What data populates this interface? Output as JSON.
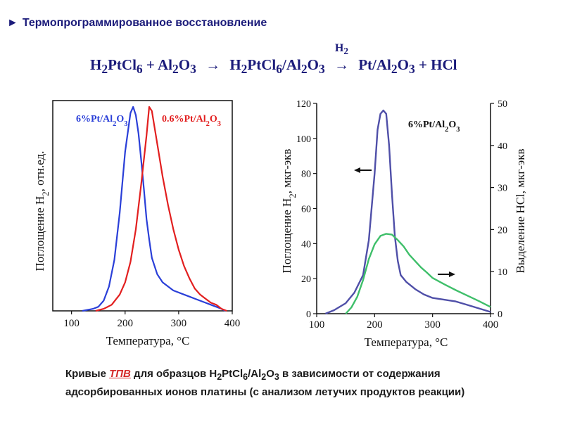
{
  "header": {
    "title": "Термопрограммированное восстановление",
    "bullet_icon": "triangle-right-icon"
  },
  "equation": {
    "reactant1": "H2PtCl6",
    "plus1": "+",
    "reactant2": "Al2O3",
    "intermediate": "H2PtCl6/Al2O3",
    "arrow_label": "H2",
    "product1": "Pt/Al2O3",
    "plus2": "+",
    "product2": "HCl"
  },
  "caption": {
    "part1": "Кривые ",
    "highlight": "ТПВ",
    "part2": "  для образцов  H2PtCl6/Al2O3  в  зависимости  от  содержания",
    "line2": "адсорбированных ионов платины (с анализом летучих продуктов реакции)"
  },
  "chart_data": [
    {
      "type": "line",
      "xlabel": "Температура,  °С",
      "ylabel": "Поглощение H2,  отн.ед.",
      "xlim": [
        65,
        400
      ],
      "x_ticks": [
        "100",
        "200",
        "300",
        "400"
      ],
      "y_ticks": [],
      "series": [
        {
          "name": "6%Pt/Al2O3",
          "color": "#2a3fd8",
          "x": [
            120,
            140,
            150,
            160,
            170,
            180,
            190,
            200,
            210,
            215,
            220,
            225,
            230,
            235,
            240,
            245,
            250,
            260,
            270,
            280,
            290,
            300,
            310,
            320,
            330,
            340,
            350,
            360,
            370,
            380,
            387
          ],
          "y": [
            0.0,
            0.01,
            0.02,
            0.05,
            0.12,
            0.25,
            0.48,
            0.78,
            0.97,
            1.0,
            0.96,
            0.87,
            0.74,
            0.6,
            0.45,
            0.35,
            0.26,
            0.18,
            0.14,
            0.12,
            0.1,
            0.09,
            0.08,
            0.07,
            0.06,
            0.05,
            0.04,
            0.03,
            0.02,
            0.01,
            0.0
          ]
        },
        {
          "name": "0.6%Pt/Al2O3",
          "color": "#e21f1f",
          "x": [
            145,
            160,
            175,
            190,
            200,
            210,
            220,
            230,
            240,
            245,
            250,
            255,
            260,
            270,
            280,
            290,
            300,
            310,
            320,
            330,
            340,
            350,
            360,
            370,
            380,
            390
          ],
          "y": [
            0.0,
            0.01,
            0.03,
            0.08,
            0.14,
            0.24,
            0.4,
            0.62,
            0.86,
            1.0,
            0.98,
            0.9,
            0.82,
            0.66,
            0.52,
            0.4,
            0.3,
            0.22,
            0.16,
            0.11,
            0.08,
            0.06,
            0.04,
            0.03,
            0.01,
            0.0
          ]
        }
      ]
    },
    {
      "type": "line",
      "xlabel": "Температура,   °С",
      "ylabel": "Поглощение H2,  мкг-экв",
      "y2label": "Выделение HCl,  мкг-экв",
      "xlim": [
        100,
        400
      ],
      "ylim": [
        0,
        120
      ],
      "y2lim": [
        0,
        50
      ],
      "x_ticks": [
        "100",
        "200",
        "300",
        "400"
      ],
      "y_ticks": [
        "0",
        "20",
        "40",
        "60",
        "80",
        "100",
        "120"
      ],
      "y2_ticks": [
        "0",
        "10",
        "20",
        "30",
        "40",
        "50"
      ],
      "series_label": "6%Pt/Al2O3",
      "series": [
        {
          "axis": "left",
          "color": "#4f4fa8",
          "x": [
            115,
            130,
            150,
            165,
            180,
            190,
            200,
            205,
            210,
            215,
            220,
            225,
            230,
            235,
            240,
            245,
            255,
            270,
            285,
            300,
            320,
            340,
            360,
            380,
            400
          ],
          "y": [
            0,
            2,
            6,
            12,
            22,
            42,
            80,
            105,
            114,
            116,
            114,
            96,
            68,
            44,
            30,
            22,
            18,
            14,
            11,
            9,
            8,
            7,
            5,
            3,
            1
          ]
        },
        {
          "axis": "right",
          "color": "#3fbf6a",
          "x": [
            150,
            160,
            170,
            180,
            190,
            200,
            210,
            220,
            230,
            240,
            250,
            260,
            270,
            280,
            290,
            300,
            320,
            340,
            360,
            380,
            400
          ],
          "y": [
            0,
            1.5,
            4,
            8,
            13,
            16.5,
            18.5,
            19,
            18.8,
            17.5,
            16,
            14,
            12.5,
            11,
            9.8,
            8.5,
            7,
            5.6,
            4.3,
            3,
            1.6
          ]
        }
      ]
    }
  ]
}
